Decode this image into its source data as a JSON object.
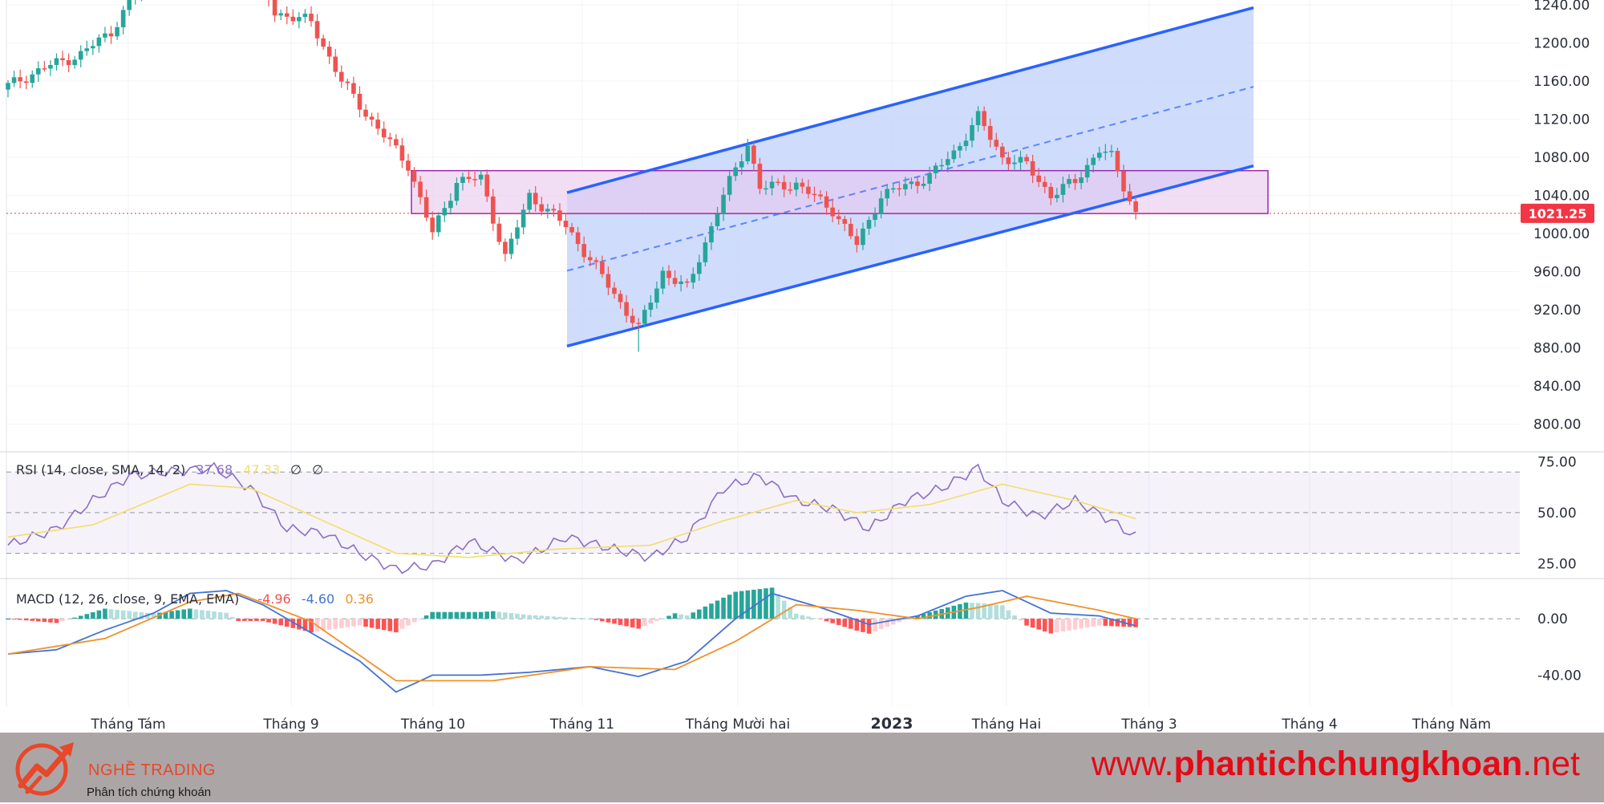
{
  "chart_data": [
    {
      "type": "candlestick",
      "title": "",
      "price_axis": {
        "ticks": [
          800,
          840,
          880,
          920,
          960,
          1000,
          1040,
          1080,
          1120,
          1160,
          1200,
          1240
        ],
        "tick_labels": [
          "800.00",
          "840.00",
          "880.00",
          "920.00",
          "960.00",
          "1000.00",
          "1040.00",
          "1080.00",
          "1120.00",
          "1160.00",
          "1200.00",
          "1240.00"
        ],
        "range": [
          772,
          1245
        ]
      },
      "last_price": 1021.25,
      "last_price_label": "1021.25",
      "time_axis": {
        "labels": [
          "Tháng Tám",
          "Tháng 9",
          "Tháng 10",
          "Tháng 11",
          "Tháng Mười hai",
          "2023",
          "Tháng Hai",
          "Tháng 3",
          "Tháng 4",
          "Tháng Năm"
        ],
        "bold_label": "2023"
      },
      "drawings": {
        "support_zone": {
          "top": 1066,
          "bottom": 1021
        },
        "up_channel": {
          "lower_start": 882,
          "lower_end": 1071,
          "upper_start": 1043,
          "upper_end": 1237,
          "mid_start": 961,
          "mid_end": 1154
        }
      },
      "price_anchors": [
        {
          "i": 0,
          "p": 1155
        },
        {
          "i": 6,
          "p": 1174
        },
        {
          "i": 12,
          "p": 1188
        },
        {
          "i": 17,
          "p": 1212
        },
        {
          "i": 22,
          "p": 1262
        },
        {
          "i": 40,
          "p": 1290
        },
        {
          "i": 44,
          "p": 1232
        },
        {
          "i": 50,
          "p": 1222
        },
        {
          "i": 55,
          "p": 1160
        },
        {
          "i": 60,
          "p": 1118
        },
        {
          "i": 66,
          "p": 1072
        },
        {
          "i": 70,
          "p": 1000
        },
        {
          "i": 74,
          "p": 1055
        },
        {
          "i": 78,
          "p": 1058
        },
        {
          "i": 82,
          "p": 975
        },
        {
          "i": 86,
          "p": 1040
        },
        {
          "i": 92,
          "p": 1008
        },
        {
          "i": 98,
          "p": 955
        },
        {
          "i": 104,
          "p": 900
        },
        {
          "i": 108,
          "p": 960
        },
        {
          "i": 112,
          "p": 942
        },
        {
          "i": 118,
          "p": 1040
        },
        {
          "i": 122,
          "p": 1095
        },
        {
          "i": 124,
          "p": 1048
        },
        {
          "i": 130,
          "p": 1052
        },
        {
          "i": 136,
          "p": 1025
        },
        {
          "i": 140,
          "p": 988
        },
        {
          "i": 144,
          "p": 1040
        },
        {
          "i": 152,
          "p": 1060
        },
        {
          "i": 156,
          "p": 1085
        },
        {
          "i": 160,
          "p": 1122
        },
        {
          "i": 164,
          "p": 1080
        },
        {
          "i": 168,
          "p": 1072
        },
        {
          "i": 172,
          "p": 1040
        },
        {
          "i": 176,
          "p": 1055
        },
        {
          "i": 180,
          "p": 1088
        },
        {
          "i": 182,
          "p": 1080
        },
        {
          "i": 184,
          "p": 1050
        },
        {
          "i": 186,
          "p": 1021
        }
      ]
    },
    {
      "type": "line",
      "title": "RSI (14, close, SMA, 14, 2)",
      "values_text": [
        "37.68",
        "47.33",
        "∅",
        "∅"
      ],
      "levels": [
        70,
        50,
        30
      ],
      "y_ticks": [
        "75.00",
        "50.00",
        "25.00"
      ],
      "range": [
        18,
        78
      ],
      "series": [
        {
          "name": "RSI",
          "color": "#8c6fc4",
          "points": [
            {
              "i": 0,
              "v": 34
            },
            {
              "i": 8,
              "v": 42
            },
            {
              "i": 14,
              "v": 56
            },
            {
              "i": 20,
              "v": 68
            },
            {
              "i": 26,
              "v": 70
            },
            {
              "i": 34,
              "v": 72
            },
            {
              "i": 40,
              "v": 62
            },
            {
              "i": 46,
              "v": 42
            },
            {
              "i": 52,
              "v": 40
            },
            {
              "i": 58,
              "v": 30
            },
            {
              "i": 64,
              "v": 22
            },
            {
              "i": 70,
              "v": 24
            },
            {
              "i": 76,
              "v": 36
            },
            {
              "i": 84,
              "v": 26
            },
            {
              "i": 92,
              "v": 38
            },
            {
              "i": 100,
              "v": 32
            },
            {
              "i": 106,
              "v": 28
            },
            {
              "i": 112,
              "v": 38
            },
            {
              "i": 118,
              "v": 62
            },
            {
              "i": 124,
              "v": 68
            },
            {
              "i": 130,
              "v": 56
            },
            {
              "i": 136,
              "v": 52
            },
            {
              "i": 142,
              "v": 42
            },
            {
              "i": 148,
              "v": 56
            },
            {
              "i": 154,
              "v": 62
            },
            {
              "i": 160,
              "v": 72
            },
            {
              "i": 164,
              "v": 56
            },
            {
              "i": 170,
              "v": 48
            },
            {
              "i": 176,
              "v": 56
            },
            {
              "i": 182,
              "v": 46
            },
            {
              "i": 186,
              "v": 38
            }
          ]
        },
        {
          "name": "RSI-based MA",
          "color": "#f2de6b",
          "points": [
            {
              "i": 0,
              "v": 38
            },
            {
              "i": 14,
              "v": 44
            },
            {
              "i": 30,
              "v": 64
            },
            {
              "i": 40,
              "v": 62
            },
            {
              "i": 52,
              "v": 46
            },
            {
              "i": 64,
              "v": 30
            },
            {
              "i": 76,
              "v": 28
            },
            {
              "i": 90,
              "v": 32
            },
            {
              "i": 106,
              "v": 34
            },
            {
              "i": 118,
              "v": 46
            },
            {
              "i": 130,
              "v": 56
            },
            {
              "i": 140,
              "v": 50
            },
            {
              "i": 152,
              "v": 54
            },
            {
              "i": 164,
              "v": 64
            },
            {
              "i": 176,
              "v": 56
            },
            {
              "i": 186,
              "v": 47
            }
          ]
        }
      ]
    },
    {
      "type": "bar",
      "title": "MACD (12, 26, close, 9, EMA, EMA)",
      "values_text": [
        "-4.96",
        "-4.60",
        "0.36"
      ],
      "y_ticks": [
        "0.00",
        "-40.00"
      ],
      "tick_values": [
        0,
        -40
      ],
      "range": [
        -62,
        28
      ],
      "series": [
        {
          "name": "MACD",
          "color": "#4472d4",
          "points": [
            {
              "i": 0,
              "v": -25
            },
            {
              "i": 8,
              "v": -22
            },
            {
              "i": 16,
              "v": -8
            },
            {
              "i": 24,
              "v": 4
            },
            {
              "i": 30,
              "v": 18
            },
            {
              "i": 36,
              "v": 20
            },
            {
              "i": 42,
              "v": 10
            },
            {
              "i": 50,
              "v": -10
            },
            {
              "i": 58,
              "v": -30
            },
            {
              "i": 64,
              "v": -52
            },
            {
              "i": 70,
              "v": -40
            },
            {
              "i": 78,
              "v": -40
            },
            {
              "i": 86,
              "v": -38
            },
            {
              "i": 96,
              "v": -34
            },
            {
              "i": 104,
              "v": -41
            },
            {
              "i": 112,
              "v": -30
            },
            {
              "i": 120,
              "v": 0
            },
            {
              "i": 126,
              "v": 18
            },
            {
              "i": 134,
              "v": 8
            },
            {
              "i": 142,
              "v": -4
            },
            {
              "i": 150,
              "v": 2
            },
            {
              "i": 158,
              "v": 16
            },
            {
              "i": 164,
              "v": 20
            },
            {
              "i": 172,
              "v": 4
            },
            {
              "i": 180,
              "v": 2
            },
            {
              "i": 186,
              "v": -5
            }
          ]
        },
        {
          "name": "Signal",
          "color": "#f0912a",
          "points": [
            {
              "i": 0,
              "v": -25
            },
            {
              "i": 16,
              "v": -14
            },
            {
              "i": 30,
              "v": 12
            },
            {
              "i": 38,
              "v": 18
            },
            {
              "i": 50,
              "v": -2
            },
            {
              "i": 64,
              "v": -44
            },
            {
              "i": 80,
              "v": -44
            },
            {
              "i": 96,
              "v": -34
            },
            {
              "i": 110,
              "v": -36
            },
            {
              "i": 120,
              "v": -16
            },
            {
              "i": 130,
              "v": 10
            },
            {
              "i": 140,
              "v": 6
            },
            {
              "i": 150,
              "v": 0
            },
            {
              "i": 160,
              "v": 8
            },
            {
              "i": 168,
              "v": 16
            },
            {
              "i": 180,
              "v": 6
            },
            {
              "i": 186,
              "v": 0
            }
          ]
        }
      ]
    }
  ],
  "colors": {
    "up": "#26a69a",
    "down": "#ef5350",
    "channel_line": "#2962ff",
    "channel_fill": "#c7d6fb",
    "zone_fill": "#e8c8ee",
    "zone_border": "#9c27b0",
    "price_tag": "#f23645"
  },
  "footer": {
    "brand_name": "NGHỀ TRADING",
    "tagline": "Phân tích chứng khoán",
    "website_prefix": "www.",
    "website_main": "phantichchungkhoan",
    "website_suffix": ".net"
  }
}
